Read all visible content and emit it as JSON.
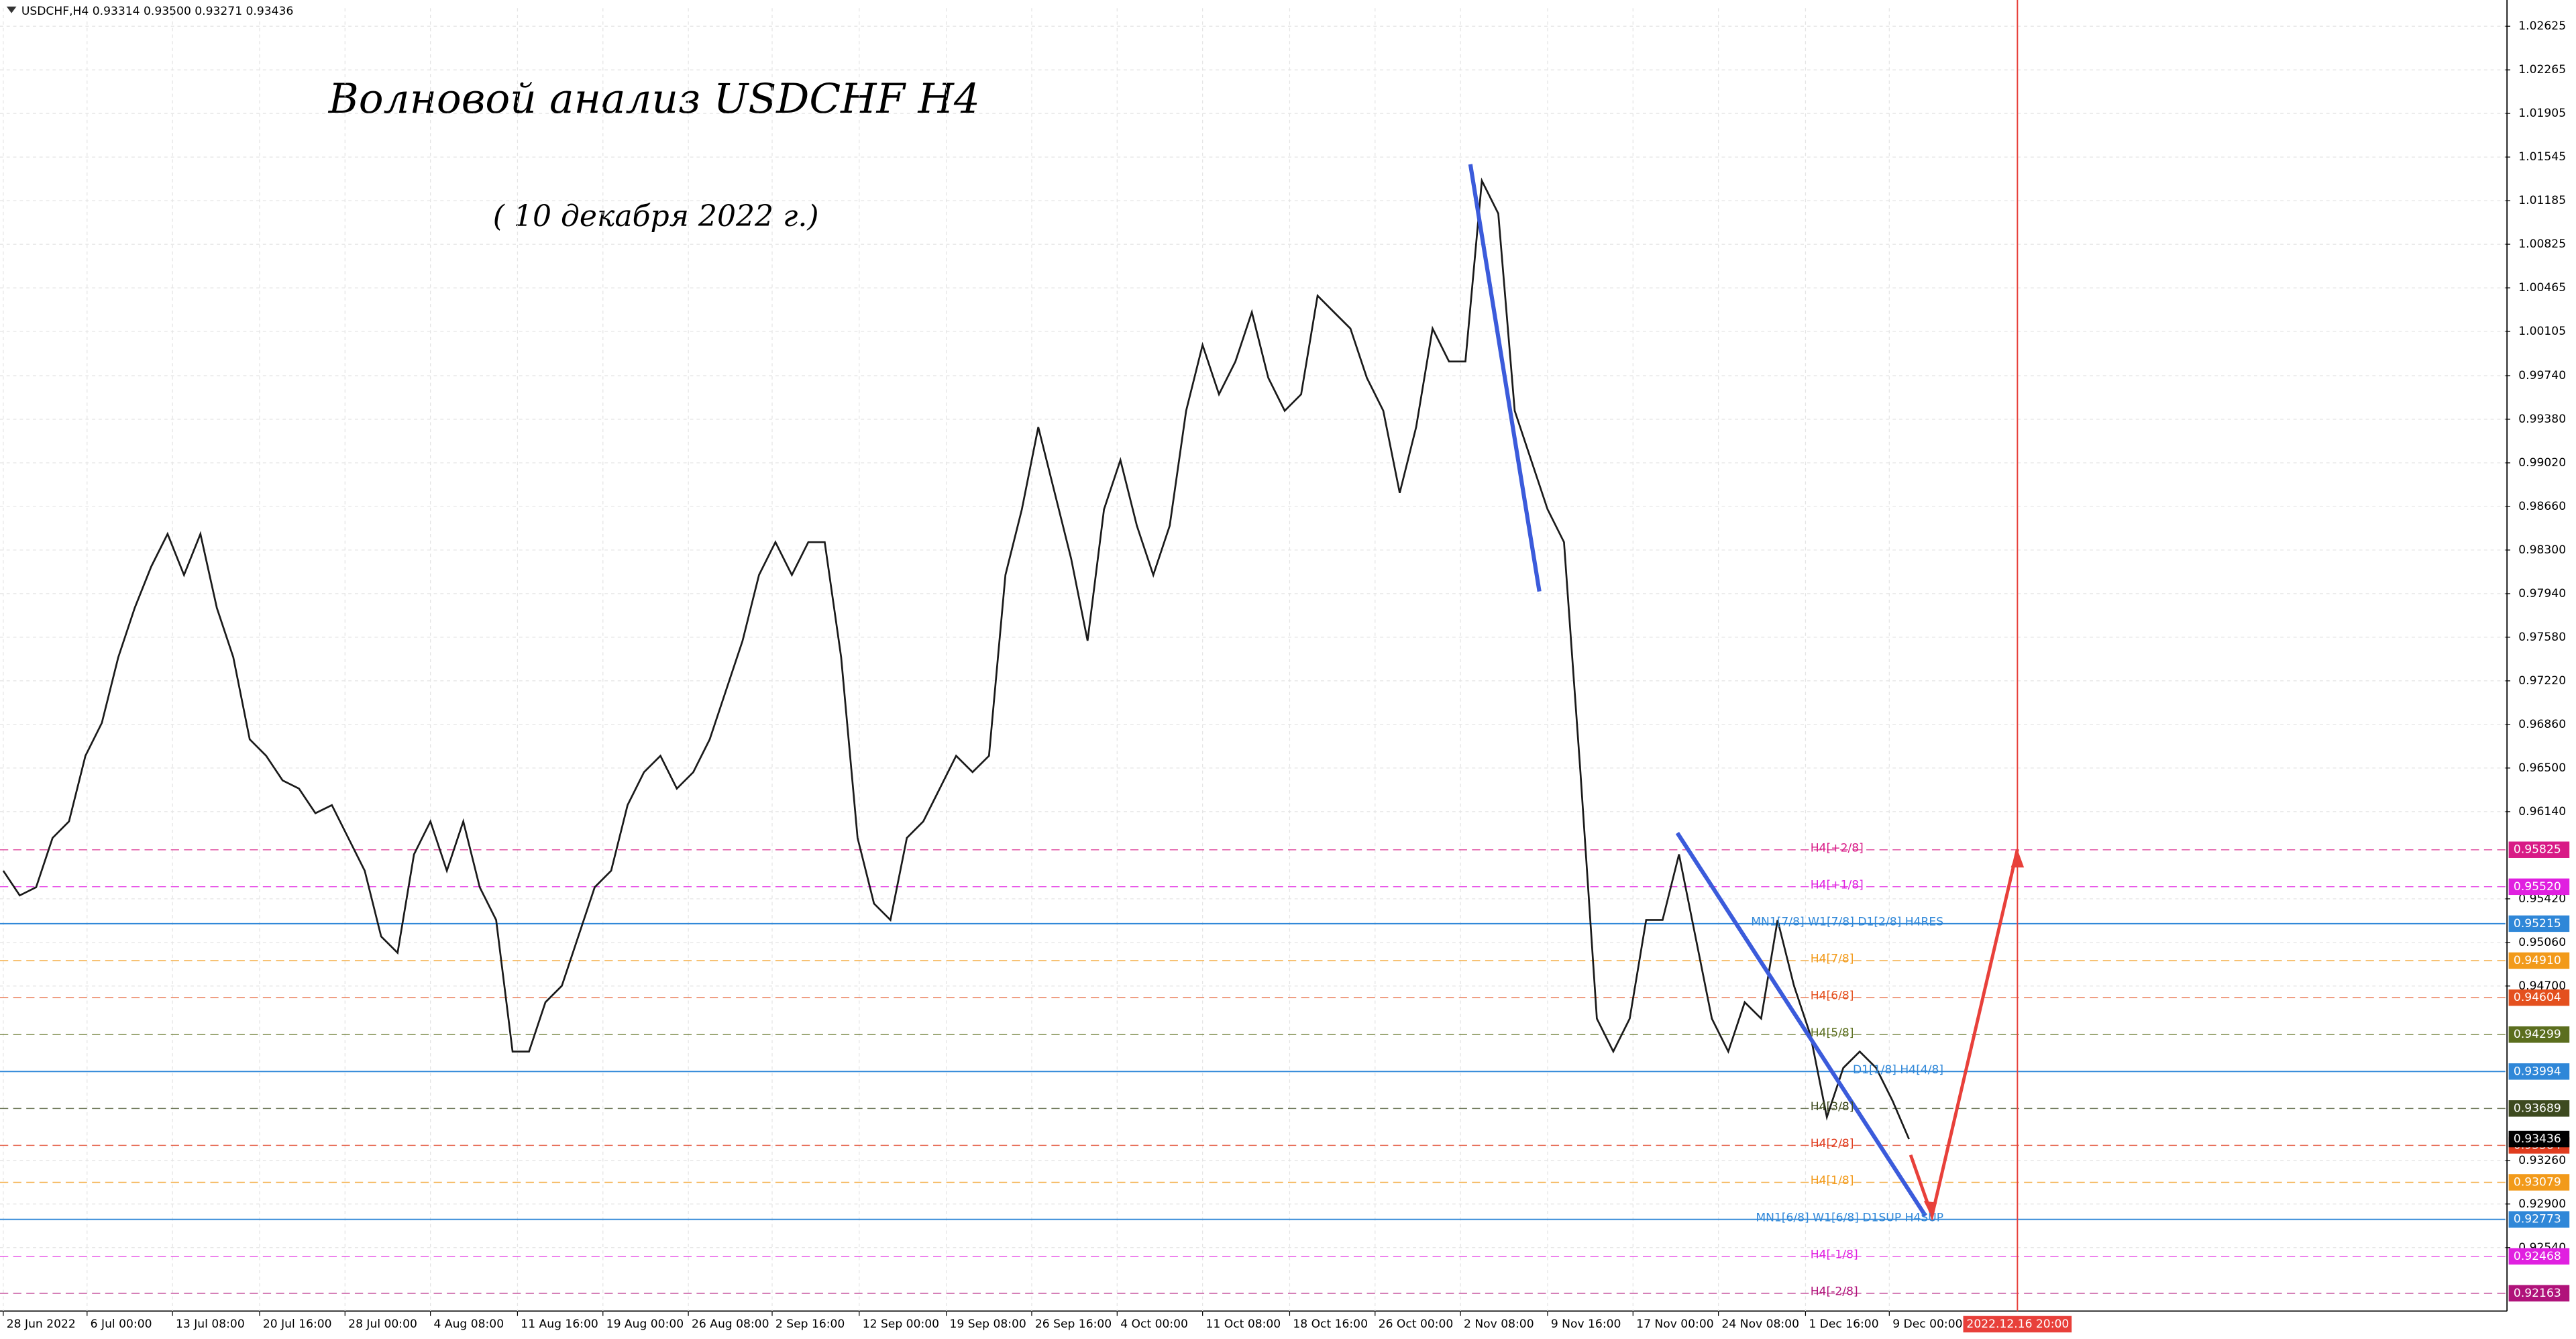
{
  "header": "USDCHF,H4  0.93314 0.93500 0.93271 0.93436",
  "chart_data": {
    "type": "line",
    "title": "Волновой анализ USDCHF H4",
    "subtitle": "( 10 декабря 2022 г.)",
    "color": "#1a1a1a",
    "grid": true,
    "values": [
      0.95652,
      0.95448,
      0.95516,
      0.95923,
      0.96059,
      0.96601,
      0.96873,
      0.97415,
      0.97822,
      0.98162,
      0.98433,
      0.98094,
      0.98433,
      0.97822,
      0.97415,
      0.96737,
      0.96601,
      0.96398,
      0.9633,
      0.96127,
      0.96194,
      0.95923,
      0.95652,
      0.95109,
      0.94974,
      0.95787,
      0.96059,
      0.95652,
      0.96059,
      0.95516,
      0.95245,
      0.94159,
      0.94159,
      0.94566,
      0.94702,
      0.95109,
      0.95516,
      0.95652,
      0.96194,
      0.96466,
      0.96601,
      0.9633,
      0.96466,
      0.96737,
      0.97144,
      0.97551,
      0.98094,
      0.98365,
      0.98094,
      0.98365,
      0.98365,
      0.97415,
      0.95923,
      0.95381,
      0.95245,
      0.95923,
      0.96059,
      0.9633,
      0.96601,
      0.96466,
      0.96601,
      0.98094,
      0.98636,
      0.99315,
      0.98772,
      0.98229,
      0.97551,
      0.98636,
      0.99043,
      0.98501,
      0.98094,
      0.98501,
      0.9945,
      0.99993,
      0.99586,
      0.99857,
      1.00264,
      0.99722,
      0.9945,
      0.99586,
      1.004,
      1.00264,
      1.00129,
      0.99722,
      0.9945,
      0.98772,
      0.99315,
      1.00129,
      0.99857,
      0.99857,
      1.0135,
      1.01078,
      0.9945,
      0.99043,
      0.98636,
      0.98365,
      0.96466,
      0.94431,
      0.94159,
      0.94431,
      0.95245,
      0.95245,
      0.95787,
      0.95109,
      0.94431,
      0.94159,
      0.94566,
      0.94431,
      0.95245,
      0.94702,
      0.94295,
      0.93617,
      0.94024,
      0.94159,
      0.94024,
      0.93752,
      0.93436
    ],
    "xlim": [
      -0.2,
      152.3
    ],
    "xticks": [
      {
        "value": 0,
        "label": "28 Jun 2022"
      },
      {
        "value": 5.1,
        "label": "6 Jul 00:00"
      },
      {
        "value": 10.3,
        "label": "13 Jul 08:00"
      },
      {
        "value": 15.6,
        "label": "20 Jul 16:00"
      },
      {
        "value": 20.8,
        "label": "28 Jul 00:00"
      },
      {
        "value": 26,
        "label": "4 Aug 08:00"
      },
      {
        "value": 31.3,
        "label": "11 Aug 16:00"
      },
      {
        "value": 36.5,
        "label": "19 Aug 00:00"
      },
      {
        "value": 41.7,
        "label": "26 Aug 08:00"
      },
      {
        "value": 46.8,
        "label": "2 Sep 16:00"
      },
      {
        "value": 52.1,
        "label": "12 Sep 00:00"
      },
      {
        "value": 57.4,
        "label": "19 Sep 08:00"
      },
      {
        "value": 62.6,
        "label": "26 Sep 16:00"
      },
      {
        "value": 67.8,
        "label": "4 Oct 00:00"
      },
      {
        "value": 73,
        "label": "11 Oct 08:00"
      },
      {
        "value": 78.3,
        "label": "18 Oct 16:00"
      },
      {
        "value": 83.5,
        "label": "26 Oct 00:00"
      },
      {
        "value": 88.7,
        "label": "2 Nov 08:00"
      },
      {
        "value": 94,
        "label": "9 Nov 16:00"
      },
      {
        "value": 99.2,
        "label": "17 Nov 00:00"
      },
      {
        "value": 104.4,
        "label": "24 Nov 08:00"
      },
      {
        "value": 109.7,
        "label": "1 Dec 16:00"
      },
      {
        "value": 114.8,
        "label": "9 Dec 00:00"
      }
    ],
    "cursor": {
      "value": 122.6,
      "label": "2022.12.16 20:00",
      "color": "#e8403a"
    },
    "ylim": [
      0.92016,
      1.02774
    ],
    "yticks": [
      1.02625,
      1.02265,
      1.01905,
      1.01545,
      1.01185,
      1.00825,
      1.00465,
      1.00105,
      {
        "value": 0.9974,
        "label": "0.99740"
      },
      {
        "value": 0.9938,
        "label": "0.99380"
      },
      {
        "value": 0.9902,
        "label": "0.99020"
      },
      {
        "value": 0.9866,
        "label": "0.98660"
      },
      {
        "value": 0.983,
        "label": "0.98300"
      },
      {
        "value": 0.9794,
        "label": "0.97940"
      },
      {
        "value": 0.9758,
        "label": "0.97580"
      },
      {
        "value": 0.9722,
        "label": "0.97220"
      },
      {
        "value": 0.9686,
        "label": "0.96860"
      },
      {
        "value": 0.965,
        "label": "0.96500"
      },
      {
        "value": 0.9614,
        "label": "0.96140"
      },
      {
        "value": 0.9542,
        "label": "0.95420"
      },
      {
        "value": 0.9506,
        "label": "0.95060"
      },
      {
        "value": 0.947,
        "label": "0.94700"
      },
      {
        "value": 0.9326,
        "label": "0.93260"
      },
      {
        "value": 0.929,
        "label": "0.92900"
      },
      {
        "value": 0.9254,
        "label": "0.92540"
      }
    ],
    "levels": [
      {
        "name": "H4[+2/8]",
        "value": 0.95825,
        "color": "#d81b86",
        "dashed": true
      },
      {
        "name": "H4[+1/8]",
        "value": 0.9552,
        "value_label": "0.95520",
        "color": "#e020e0",
        "dashed": true
      },
      {
        "name": "MN1[7/8] W1[7/8] D1[2/8] H4RES",
        "value": 0.95215,
        "color": "#2f87d8",
        "dashed": false
      },
      {
        "name": "H4[7/8]",
        "value": 0.9491,
        "value_label": "0.94910",
        "color": "#f29a1a",
        "dashed": true
      },
      {
        "name": "H4[6/8]",
        "value": 0.94604,
        "color": "#e4501e",
        "dashed": true
      },
      {
        "name": "H4[5/8]",
        "value": 0.94299,
        "color": "#5b6e1e",
        "dashed": true
      },
      {
        "name": "D1[1/8] H4[4/8]",
        "value": 0.93994,
        "color": "#2f87d8",
        "dashed": false
      },
      {
        "name": "H4[3/8]",
        "value": 0.93689,
        "color": "#3d4a1f",
        "dashed": true
      },
      {
        "name": "H4[2/8]",
        "value": 0.93384,
        "color": "#e03c1e",
        "dashed": true
      },
      {
        "name": "H4[1/8]",
        "value": 0.93079,
        "color": "#f29a1a",
        "dashed": true
      },
      {
        "name": "MN1[6/8] W1[6/8] D1SUP H4SUP",
        "value": 0.92773,
        "color": "#2f87d8",
        "dashed": false
      },
      {
        "name": "H4[-1/8]",
        "value": 0.92468,
        "color": "#e020e0",
        "dashed": true
      },
      {
        "name": "H4[-2/8]",
        "value": 0.92163,
        "color": "#b0127a",
        "dashed": true
      }
    ],
    "current_price": {
      "value": 0.93436,
      "color": "#000000"
    }
  }
}
